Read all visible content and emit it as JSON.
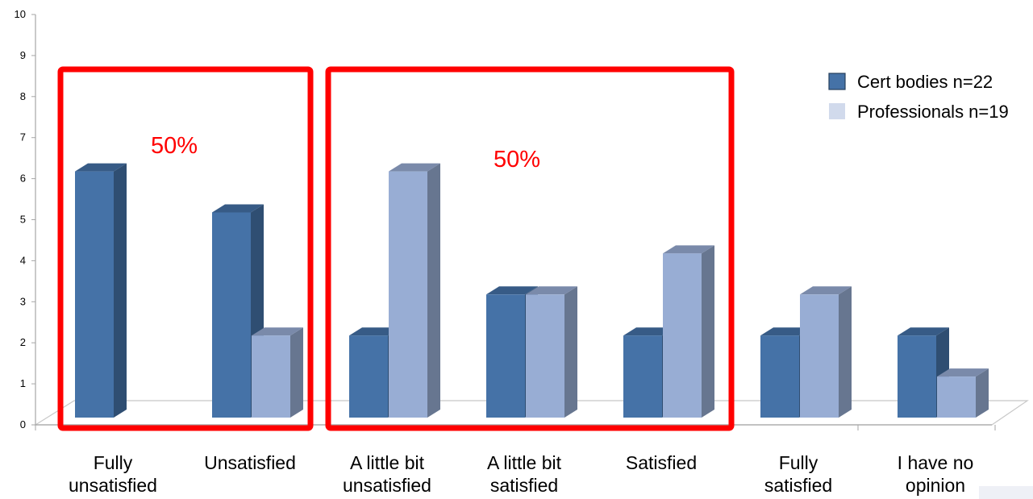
{
  "chart_data": {
    "type": "bar",
    "style": "3d-clustered-column",
    "categories": [
      [
        "Fully",
        "unsatisfied"
      ],
      [
        "Unsatisfied"
      ],
      [
        "A little bit",
        "unsatisfied"
      ],
      [
        "A little bit",
        "satisfied"
      ],
      [
        "Satisfied"
      ],
      [
        "Fully",
        "satisfied"
      ],
      [
        "I have no",
        "opinion"
      ]
    ],
    "series": [
      {
        "name": "Cert bodies  n=22",
        "values": [
          6,
          5,
          2,
          3,
          2,
          2,
          2
        ],
        "color": "#4572a7"
      },
      {
        "name": "Professionals  n=19",
        "values": [
          0,
          2,
          6,
          3,
          4,
          3,
          1
        ],
        "color": "#98add4"
      }
    ],
    "yticks": [
      "0",
      "1",
      "2",
      "3",
      "4",
      "5",
      "6",
      "7",
      "8",
      "9",
      "10"
    ],
    "ylim": [
      0,
      10
    ],
    "grid": false,
    "legend_position": "top-right",
    "annotations": [
      {
        "text": "50%",
        "groups": [
          "Fully unsatisfied",
          "Unsatisfied"
        ],
        "color": "#ff0000"
      },
      {
        "text": "50%",
        "groups": [
          "A little bit unsatisfied",
          "A little bit satisfied",
          "Satisfied"
        ],
        "color": "#ff0000"
      }
    ]
  }
}
